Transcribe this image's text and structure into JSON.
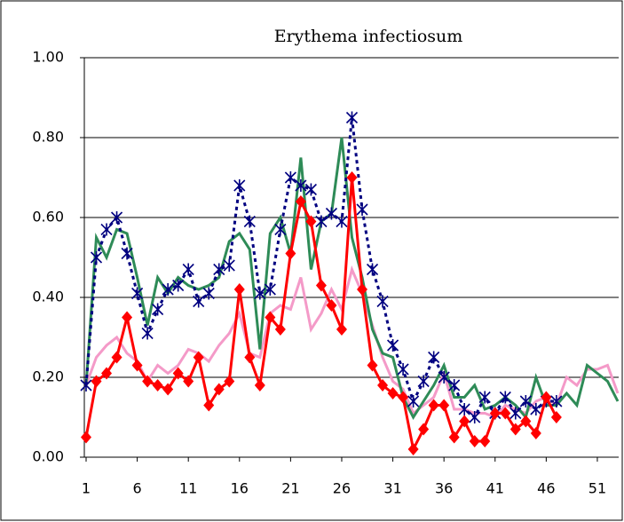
{
  "chart_data": {
    "type": "line",
    "title": "Erythema infectiosum",
    "x": [
      1,
      2,
      3,
      4,
      5,
      6,
      7,
      8,
      9,
      10,
      11,
      12,
      13,
      14,
      15,
      16,
      17,
      18,
      19,
      20,
      21,
      22,
      23,
      24,
      25,
      26,
      27,
      28,
      29,
      30,
      31,
      32,
      33,
      34,
      35,
      36,
      37,
      38,
      39,
      40,
      41,
      42,
      43,
      44,
      45,
      46,
      47,
      48,
      49,
      50,
      51,
      52,
      53
    ],
    "xlim": [
      1,
      53
    ],
    "xticks": [
      1,
      6,
      11,
      16,
      21,
      26,
      31,
      36,
      41,
      46,
      51
    ],
    "ylim": [
      0,
      1
    ],
    "yticks": [
      {
        "value": 0,
        "label": "0.00"
      },
      {
        "value": 0.2,
        "label": "0.20"
      },
      {
        "value": 0.4,
        "label": "0.40"
      },
      {
        "value": 0.6,
        "label": "0.60"
      },
      {
        "value": 0.8,
        "label": "0.80"
      },
      {
        "value": 1,
        "label": "1.00"
      }
    ],
    "grid": true,
    "series": [
      {
        "color": "#f49ac8",
        "marker": "none",
        "dashed": false,
        "values": [
          0.18,
          0.25,
          0.28,
          0.3,
          0.26,
          0.24,
          0.19,
          0.23,
          0.21,
          0.23,
          0.27,
          0.26,
          0.24,
          0.28,
          0.31,
          0.36,
          0.26,
          0.25,
          0.36,
          0.38,
          0.37,
          0.45,
          0.32,
          0.36,
          0.42,
          0.37,
          0.47,
          0.41,
          0.33,
          0.25,
          0.19,
          0.17,
          0.11,
          0.13,
          0.15,
          0.21,
          0.12,
          0.12,
          0.11,
          0.11,
          0.1,
          0.13,
          0.12,
          0.11,
          0.14,
          0.15,
          0.13,
          0.2,
          0.18,
          0.22,
          0.22,
          0.23,
          0.16
        ]
      },
      {
        "color": "#2e8b57",
        "marker": "none",
        "dashed": false,
        "values": [
          0.18,
          0.55,
          0.5,
          0.57,
          0.56,
          0.45,
          0.33,
          0.45,
          0.41,
          0.45,
          0.43,
          0.42,
          0.43,
          0.45,
          0.54,
          0.56,
          0.52,
          0.27,
          0.56,
          0.6,
          0.51,
          0.75,
          0.47,
          0.59,
          0.61,
          0.8,
          0.55,
          0.45,
          0.32,
          0.26,
          0.25,
          0.15,
          0.1,
          0.14,
          0.18,
          0.23,
          0.15,
          0.15,
          0.18,
          0.12,
          0.13,
          0.15,
          0.13,
          0.1,
          0.2,
          0.13,
          0.13,
          0.16,
          0.13,
          0.23,
          0.21,
          0.19,
          0.14
        ]
      },
      {
        "color": "#000080",
        "marker": "asterisk",
        "dashed": true,
        "values": [
          0.18,
          0.5,
          0.57,
          0.6,
          0.51,
          0.41,
          0.31,
          0.37,
          0.42,
          0.43,
          0.47,
          0.39,
          0.41,
          0.47,
          0.48,
          0.68,
          0.59,
          0.41,
          0.42,
          0.57,
          0.7,
          0.68,
          0.67,
          0.59,
          0.61,
          0.59,
          0.85,
          0.62,
          0.47,
          0.39,
          0.28,
          0.22,
          0.14,
          0.19,
          0.25,
          0.2,
          0.18,
          0.12,
          0.1,
          0.15,
          0.11,
          0.15,
          0.11,
          0.14,
          0.12,
          0.14,
          0.14,
          null,
          null,
          null,
          null,
          null,
          null
        ]
      },
      {
        "color": "#ff0000",
        "marker": "diamond",
        "dashed": false,
        "values": [
          0.05,
          0.19,
          0.21,
          0.25,
          0.35,
          0.23,
          0.19,
          0.18,
          0.17,
          0.21,
          0.19,
          0.25,
          0.13,
          0.17,
          0.19,
          0.42,
          0.25,
          0.18,
          0.35,
          0.32,
          0.51,
          0.64,
          0.59,
          0.43,
          0.38,
          0.32,
          0.7,
          0.42,
          0.23,
          0.18,
          0.16,
          0.15,
          0.02,
          0.07,
          0.13,
          0.13,
          0.05,
          0.09,
          0.04,
          0.04,
          0.11,
          0.11,
          0.07,
          0.09,
          0.06,
          0.15,
          0.1,
          null,
          null,
          null,
          null,
          null,
          null
        ]
      }
    ]
  }
}
